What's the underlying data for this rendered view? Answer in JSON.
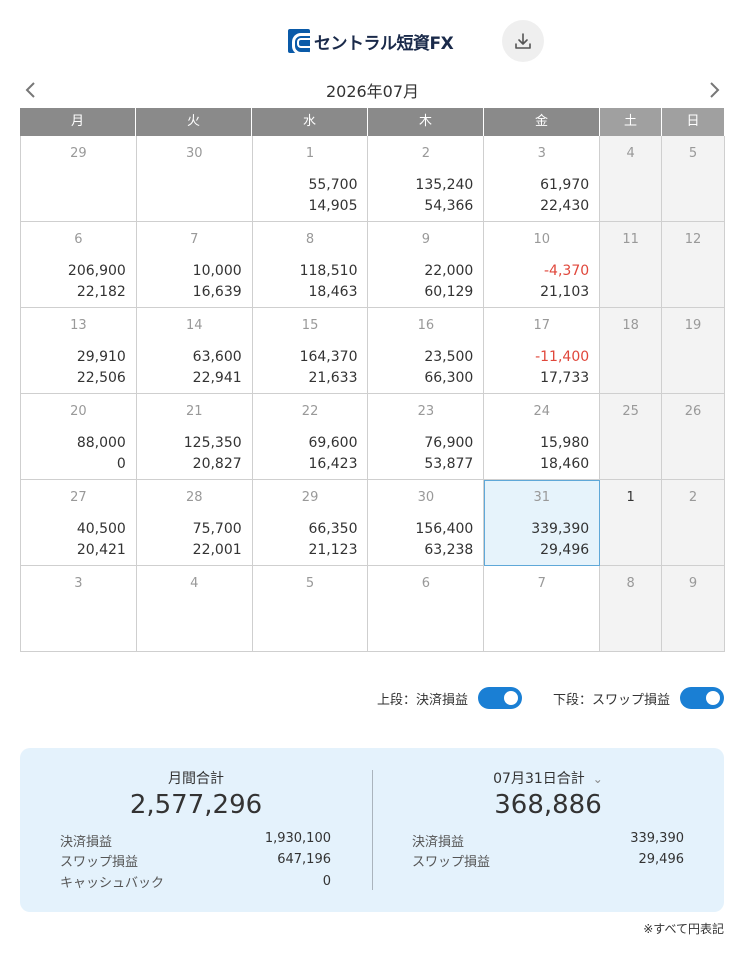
{
  "header": {
    "logo_text": "セントラル短資FX",
    "download_icon": "download-icon"
  },
  "nav": {
    "month_title": "2026年07月",
    "prev_icon": "chevron-left-icon",
    "next_icon": "chevron-right-icon"
  },
  "weekdays": [
    "月",
    "火",
    "水",
    "木",
    "金",
    "土",
    "日"
  ],
  "weeks": [
    [
      {
        "day": "29",
        "v1": "",
        "v2": ""
      },
      {
        "day": "30",
        "v1": "",
        "v2": ""
      },
      {
        "day": "1",
        "v1": "55,700",
        "v2": "14,905"
      },
      {
        "day": "2",
        "v1": "135,240",
        "v2": "54,366"
      },
      {
        "day": "3",
        "v1": "61,970",
        "v2": "22,430"
      },
      {
        "day": "4",
        "v1": "",
        "v2": ""
      },
      {
        "day": "5",
        "v1": "",
        "v2": ""
      }
    ],
    [
      {
        "day": "6",
        "v1": "206,900",
        "v2": "22,182"
      },
      {
        "day": "7",
        "v1": "10,000",
        "v2": "16,639"
      },
      {
        "day": "8",
        "v1": "118,510",
        "v2": "18,463"
      },
      {
        "day": "9",
        "v1": "22,000",
        "v2": "60,129"
      },
      {
        "day": "10",
        "v1": "-4,370",
        "v2": "21,103"
      },
      {
        "day": "11",
        "v1": "",
        "v2": ""
      },
      {
        "day": "12",
        "v1": "",
        "v2": ""
      }
    ],
    [
      {
        "day": "13",
        "v1": "29,910",
        "v2": "22,506"
      },
      {
        "day": "14",
        "v1": "63,600",
        "v2": "22,941"
      },
      {
        "day": "15",
        "v1": "164,370",
        "v2": "21,633"
      },
      {
        "day": "16",
        "v1": "23,500",
        "v2": "66,300"
      },
      {
        "day": "17",
        "v1": "-11,400",
        "v2": "17,733"
      },
      {
        "day": "18",
        "v1": "",
        "v2": ""
      },
      {
        "day": "19",
        "v1": "",
        "v2": ""
      }
    ],
    [
      {
        "day": "20",
        "v1": "88,000",
        "v2": "0"
      },
      {
        "day": "21",
        "v1": "125,350",
        "v2": "20,827"
      },
      {
        "day": "22",
        "v1": "69,600",
        "v2": "16,423"
      },
      {
        "day": "23",
        "v1": "76,900",
        "v2": "53,877"
      },
      {
        "day": "24",
        "v1": "15,980",
        "v2": "18,460"
      },
      {
        "day": "25",
        "v1": "",
        "v2": ""
      },
      {
        "day": "26",
        "v1": "",
        "v2": ""
      }
    ],
    [
      {
        "day": "27",
        "v1": "40,500",
        "v2": "20,421"
      },
      {
        "day": "28",
        "v1": "75,700",
        "v2": "22,001"
      },
      {
        "day": "29",
        "v1": "66,350",
        "v2": "21,123"
      },
      {
        "day": "30",
        "v1": "156,400",
        "v2": "63,238"
      },
      {
        "day": "31",
        "v1": "339,390",
        "v2": "29,496"
      },
      {
        "day": "1",
        "v1": "",
        "v2": ""
      },
      {
        "day": "2",
        "v1": "",
        "v2": ""
      }
    ],
    [
      {
        "day": "3",
        "v1": "",
        "v2": ""
      },
      {
        "day": "4",
        "v1": "",
        "v2": ""
      },
      {
        "day": "5",
        "v1": "",
        "v2": ""
      },
      {
        "day": "6",
        "v1": "",
        "v2": ""
      },
      {
        "day": "7",
        "v1": "",
        "v2": ""
      },
      {
        "day": "8",
        "v1": "",
        "v2": ""
      },
      {
        "day": "9",
        "v1": "",
        "v2": ""
      }
    ]
  ],
  "toggles": {
    "upper_label": "上段：決済損益",
    "lower_label": "下段：スワップ損益",
    "upper_on": true,
    "lower_on": true
  },
  "summary": {
    "monthly": {
      "title": "月間合計",
      "total": "2,577,296",
      "rows": [
        {
          "label": "決済損益",
          "value": "1,930,100"
        },
        {
          "label": "スワップ損益",
          "value": "647,196"
        },
        {
          "label": "キャッシュバック",
          "value": "0"
        }
      ]
    },
    "daily": {
      "title": "07月31日合計",
      "total": "368,886",
      "rows": [
        {
          "label": "決済損益",
          "value": "339,390"
        },
        {
          "label": "スワップ損益",
          "value": "29,496"
        }
      ]
    }
  },
  "footnote": "※すべて円表記",
  "colors": {
    "accent": "#1a7fd4",
    "negative": "#e0473b",
    "header_bg": "#8a8a8a",
    "summary_bg": "#e4f2fc"
  }
}
